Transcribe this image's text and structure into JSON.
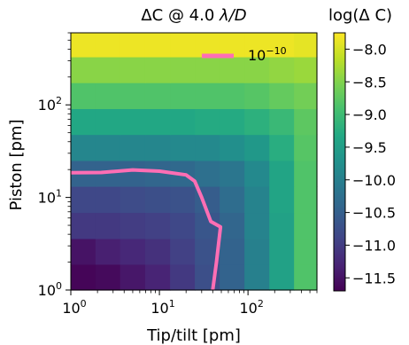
{
  "chart_data": {
    "type": "heatmap",
    "title": "ΔC @ 4.0 λ/D",
    "title_parts": {
      "pre": "ΔC @ 4.0 ",
      "lambda": "λ",
      "post": "/D"
    },
    "xlabel": "Tip/tilt [pm]",
    "ylabel": "Piston [pm]",
    "x_scale": "log",
    "y_scale": "log",
    "xlim": [
      1,
      600
    ],
    "ylim": [
      1,
      600
    ],
    "x_ticks": [
      {
        "value": 1,
        "base": "10",
        "exp": "0"
      },
      {
        "value": 10,
        "base": "10",
        "exp": "1"
      },
      {
        "value": 100,
        "base": "10",
        "exp": "2"
      }
    ],
    "y_ticks": [
      {
        "value": 1,
        "base": "10",
        "exp": "0"
      },
      {
        "value": 10,
        "base": "10",
        "exp": "1"
      },
      {
        "value": 100,
        "base": "10",
        "exp": "2"
      }
    ],
    "grid_x_edges": [
      1,
      1.9,
      3.6,
      6.9,
      13.2,
      25.1,
      47.9,
      91.2,
      174,
      331,
      600
    ],
    "grid_y_edges": [
      1,
      1.9,
      3.6,
      6.9,
      13.2,
      25.1,
      47.9,
      91.2,
      174,
      331,
      600
    ],
    "z_log10_rows_bottom_to_top": [
      [
        -11.65,
        -11.6,
        -11.45,
        -11.3,
        -11.05,
        -10.75,
        -10.45,
        -10.0,
        -9.45,
        -8.85
      ],
      [
        -11.5,
        -11.35,
        -11.25,
        -11.15,
        -10.95,
        -10.7,
        -10.45,
        -10.0,
        -9.45,
        -8.85
      ],
      [
        -11.05,
        -11.05,
        -11.0,
        -10.95,
        -10.85,
        -10.65,
        -10.4,
        -9.95,
        -9.45,
        -8.85
      ],
      [
        -10.85,
        -10.85,
        -10.8,
        -10.75,
        -10.7,
        -10.55,
        -10.3,
        -9.95,
        -9.4,
        -8.85
      ],
      [
        -10.45,
        -10.45,
        -10.45,
        -10.4,
        -10.35,
        -10.25,
        -10.15,
        -9.85,
        -9.4,
        -8.85
      ],
      [
        -9.9,
        -9.9,
        -9.9,
        -9.9,
        -9.85,
        -9.85,
        -9.75,
        -9.6,
        -9.25,
        -8.8
      ],
      [
        -9.35,
        -9.35,
        -9.35,
        -9.35,
        -9.35,
        -9.3,
        -9.3,
        -9.2,
        -9.05,
        -8.75
      ],
      [
        -8.85,
        -8.85,
        -8.85,
        -8.85,
        -8.85,
        -8.85,
        -8.85,
        -8.8,
        -8.7,
        -8.6
      ],
      [
        -8.45,
        -8.45,
        -8.45,
        -8.45,
        -8.45,
        -8.45,
        -8.45,
        -8.45,
        -8.4,
        -8.35
      ],
      [
        -7.85,
        -7.85,
        -7.85,
        -7.85,
        -7.85,
        -7.85,
        -7.85,
        -7.85,
        -7.85,
        -7.9
      ]
    ],
    "colorbar": {
      "label": "log(Δ C)",
      "range": [
        -11.7,
        -7.75
      ],
      "ticks": [
        -8.0,
        -8.5,
        -9.0,
        -9.5,
        -10.0,
        -10.5,
        -11.0,
        -11.5
      ],
      "tick_labels": [
        "−8.0",
        "−8.5",
        "−9.0",
        "−9.5",
        "−10.0",
        "−10.5",
        "−11.0",
        "−11.5"
      ]
    },
    "contour": {
      "level_base": "10",
      "level_exp": "−10",
      "color": "#ff6eb4",
      "points": [
        {
          "x": 1,
          "y": 18.5
        },
        {
          "x": 2.2,
          "y": 18.6
        },
        {
          "x": 5,
          "y": 19.8
        },
        {
          "x": 10,
          "y": 19.2
        },
        {
          "x": 20,
          "y": 17.5
        },
        {
          "x": 25,
          "y": 15.0
        },
        {
          "x": 30,
          "y": 10.0
        },
        {
          "x": 38,
          "y": 5.5
        },
        {
          "x": 49,
          "y": 4.8
        },
        {
          "x": 44,
          "y": 2.0
        },
        {
          "x": 40,
          "y": 1.0
        }
      ]
    },
    "legend_position": "upper-right",
    "colormap_stops": [
      "#440154",
      "#482475",
      "#414487",
      "#355f8d",
      "#2a788e",
      "#21918c",
      "#22a884",
      "#44bf70",
      "#7ad151",
      "#bddf26",
      "#fde725"
    ]
  }
}
